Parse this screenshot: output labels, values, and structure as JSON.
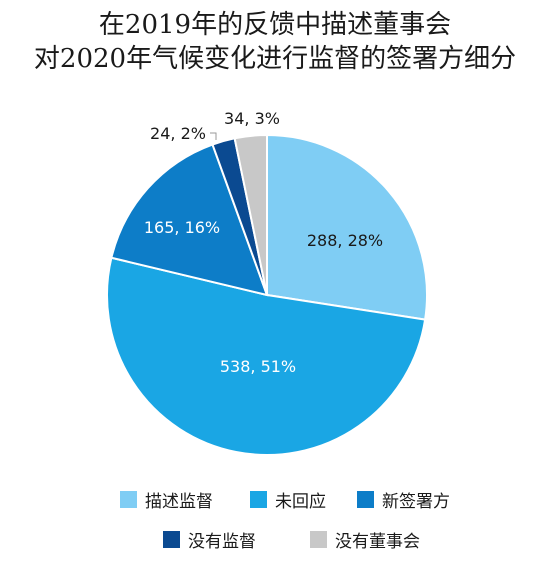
{
  "chart_data": {
    "type": "pie",
    "title": [
      "在2019年的反馈中描述董事会",
      "对2020年气候变化进行监督的签署方细分"
    ],
    "slices": [
      {
        "name": "描述监督",
        "value": 288,
        "percent": "28%",
        "label": "288, 28%",
        "color": "#7fcdf4"
      },
      {
        "name": "未回应",
        "value": 538,
        "percent": "51%",
        "label": "538, 51%",
        "color": "#1aa6e4"
      },
      {
        "name": "新签署方",
        "value": 165,
        "percent": "16%",
        "label": "165, 16%",
        "color": "#0d7dc8"
      },
      {
        "name": "没有监督",
        "value": 24,
        "percent": "2%",
        "label": "24, 2%",
        "color": "#0b4a91"
      },
      {
        "name": "没有董事会",
        "value": 34,
        "percent": "3%",
        "label": "34, 3%",
        "color": "#c8c8c8"
      }
    ],
    "legend_position": "bottom"
  }
}
